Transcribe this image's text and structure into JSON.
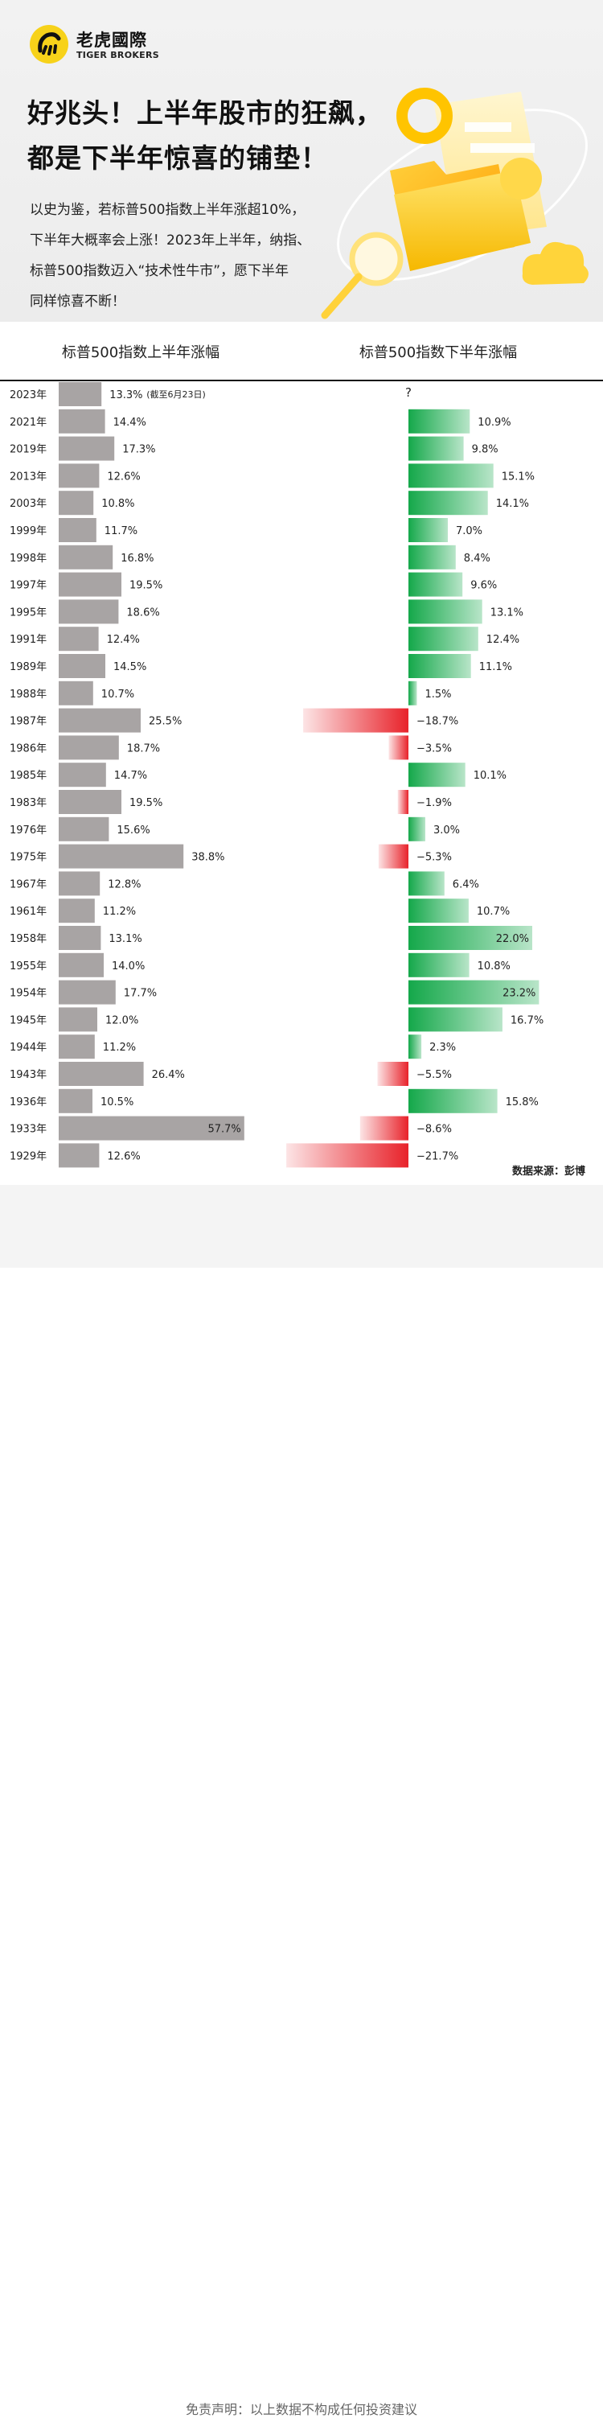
{
  "brand": {
    "name_cn": "老虎國際",
    "name_en": "TIGER BROKERS"
  },
  "headline": {
    "line1": "好兆头！上半年股市的狂飙，",
    "line2": "都是下半年惊喜的铺垫！"
  },
  "intro": {
    "line1": "以史为鉴，若标普500指数上半年涨超10%，",
    "line2": "下半年大概率会上涨！2023年上半年，纳指、",
    "line3": "标普500指数迈入“技术性牛市”，愿下半年",
    "line4": "同样惊喜不断！"
  },
  "source": "数据来源：彭博",
  "disclaimer": "免责声明：以上数据不构成任何投资建议",
  "colors": {
    "gray_bar": "#a8a4a4",
    "gain_green": "#14a84a",
    "loss_red": "#e8222a"
  },
  "icons": [
    "tiger-logo-icon",
    "folder-illustration",
    "magnifier-illustration",
    "cloud-illustration"
  ],
  "chart_data": {
    "type": "bar",
    "title_left": "标普500指数上半年涨幅",
    "title_right": "标普500指数下半年涨幅",
    "categories": [
      "2023年",
      "2021年",
      "2019年",
      "2013年",
      "2003年",
      "1999年",
      "1998年",
      "1997年",
      "1995年",
      "1991年",
      "1989年",
      "1988年",
      "1987年",
      "1986年",
      "1985年",
      "1983年",
      "1976年",
      "1975年",
      "1967年",
      "1961年",
      "1958年",
      "1955年",
      "1954年",
      "1945年",
      "1944年",
      "1943年",
      "1936年",
      "1933年",
      "1929年"
    ],
    "series": [
      {
        "name": "标普500指数上半年涨幅",
        "values": [
          13.3,
          14.4,
          17.3,
          12.6,
          10.8,
          11.7,
          16.8,
          19.5,
          18.6,
          12.4,
          14.5,
          10.7,
          25.5,
          18.7,
          14.7,
          19.5,
          15.6,
          38.8,
          12.8,
          11.2,
          13.1,
          14.0,
          17.7,
          12.0,
          11.2,
          26.4,
          10.5,
          57.7,
          12.6
        ],
        "labels": [
          "13.3%",
          "14.4%",
          "17.3%",
          "12.6%",
          "10.8%",
          "11.7%",
          "16.8%",
          "19.5%",
          "18.6%",
          "12.4%",
          "14.5%",
          "10.7%",
          "25.5%",
          "18.7%",
          "14.7%",
          "19.5%",
          "15.6%",
          "38.8%",
          "12.8%",
          "11.2%",
          "13.1%",
          "14.0%",
          "17.7%",
          "12.0%",
          "11.2%",
          "26.4%",
          "10.5%",
          "57.7%",
          "12.6%"
        ]
      },
      {
        "name": "标普500指数下半年涨幅",
        "values": [
          null,
          10.9,
          9.8,
          15.1,
          14.1,
          7.0,
          8.4,
          9.6,
          13.1,
          12.4,
          11.1,
          1.5,
          -18.7,
          -3.5,
          10.1,
          -1.9,
          3.0,
          -5.3,
          6.4,
          10.7,
          22.0,
          10.8,
          23.2,
          16.7,
          2.3,
          -5.5,
          15.8,
          -8.6,
          -21.7
        ],
        "labels": [
          "?",
          "10.9%",
          "9.8%",
          "15.1%",
          "14.1%",
          "7.0%",
          "8.4%",
          "9.6%",
          "13.1%",
          "12.4%",
          "11.1%",
          "1.5%",
          "−18.7%",
          "−3.5%",
          "10.1%",
          "−1.9%",
          "3.0%",
          "−5.3%",
          "6.4%",
          "10.7%",
          "22.0%",
          "10.8%",
          "23.2%",
          "16.7%",
          "2.3%",
          "−5.5%",
          "15.8%",
          "−8.6%",
          "−21.7%"
        ]
      }
    ],
    "annotations": [
      "(截至6月23日)"
    ]
  }
}
